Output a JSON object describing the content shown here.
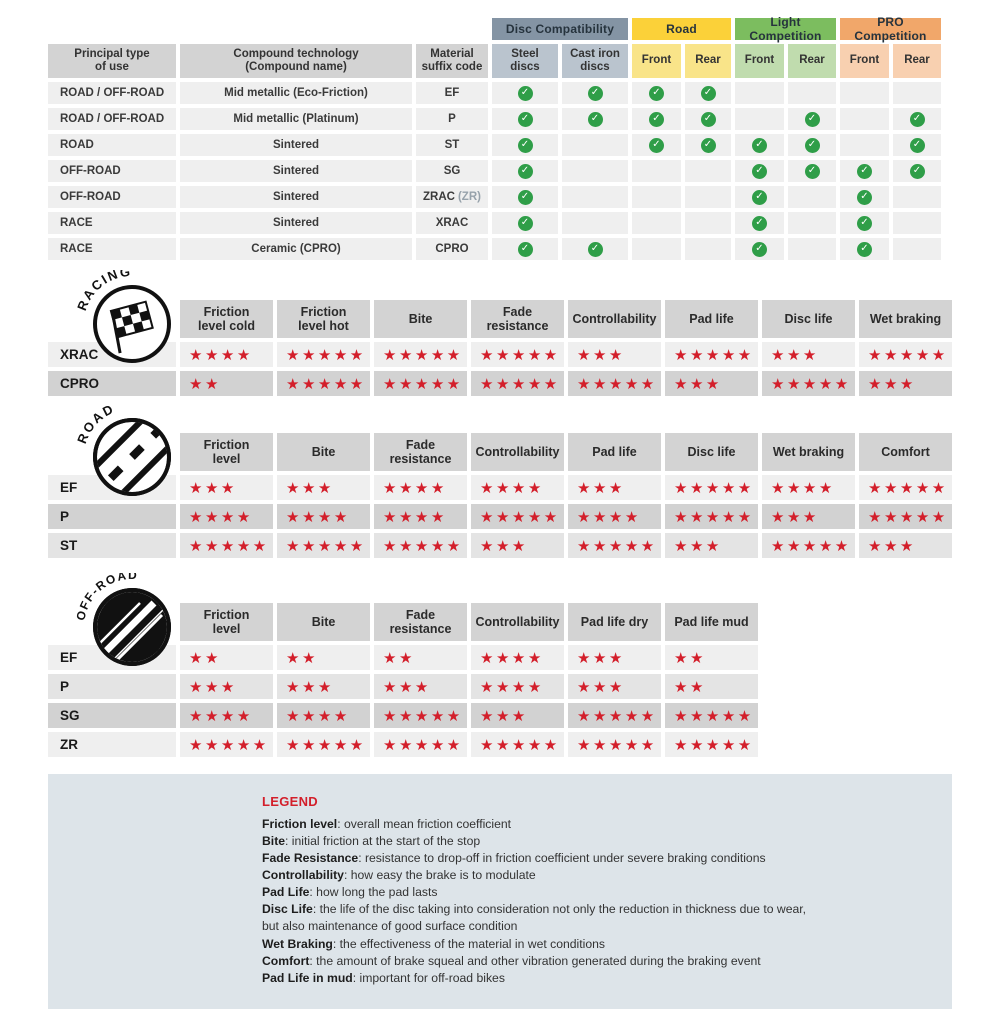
{
  "colors": {
    "star_red": "#d31f2b",
    "check_green": "#2f9e48",
    "header_gray": "#d3d3d3",
    "row_light": "#efefef",
    "row_mid": "#e4e4e4",
    "row_dark": "#d2d2d2",
    "disc_group": "#8494a4",
    "disc_sub": "#bac4ce",
    "road_group": "#fbd139",
    "road_sub": "#f9e489",
    "light_group": "#7cbd5f",
    "light_sub": "#c0dcae",
    "pro_group": "#f1a76a",
    "pro_sub": "#f8d0b0",
    "legend_bg": "#dde4e9",
    "legend_red": "#d31f2b"
  },
  "chart_data": [
    {
      "type": "table",
      "title": "",
      "column_groups": [
        {
          "label": "Disc Compatibility",
          "span": 2
        },
        {
          "label": "Road",
          "span": 2
        },
        {
          "label": "Light Competition",
          "span": 2
        },
        {
          "label": "PRO Competition",
          "span": 2
        }
      ],
      "columns": [
        "Principal type\nof use",
        "Compound technology\n(Compound name)",
        "Material\nsuffix code",
        "Steel\ndiscs",
        "Cast iron\ndiscs",
        "Front",
        "Rear",
        "Front",
        "Rear",
        "Front",
        "Rear"
      ],
      "rows": [
        {
          "use": "ROAD / OFF-ROAD",
          "technology": "Mid metallic (Eco-Friction)",
          "suffix": "EF",
          "suffix_note": "",
          "checks": [
            1,
            1,
            1,
            1,
            0,
            0,
            0,
            0
          ]
        },
        {
          "use": "ROAD / OFF-ROAD",
          "technology": "Mid metallic (Platinum)",
          "suffix": "P",
          "suffix_note": "",
          "checks": [
            1,
            1,
            1,
            1,
            0,
            1,
            0,
            1
          ]
        },
        {
          "use": "ROAD",
          "technology": "Sintered",
          "suffix": "ST",
          "suffix_note": "",
          "checks": [
            1,
            0,
            1,
            1,
            1,
            1,
            0,
            1
          ]
        },
        {
          "use": "OFF-ROAD",
          "technology": "Sintered",
          "suffix": "SG",
          "suffix_note": "",
          "checks": [
            1,
            0,
            0,
            0,
            1,
            1,
            1,
            1
          ]
        },
        {
          "use": "OFF-ROAD",
          "technology": "Sintered",
          "suffix": "ZRAC",
          "suffix_note": "(ZR)",
          "checks": [
            1,
            0,
            0,
            0,
            1,
            0,
            1,
            0
          ]
        },
        {
          "use": "RACE",
          "technology": "Sintered",
          "suffix": "XRAC",
          "suffix_note": "",
          "checks": [
            1,
            0,
            0,
            0,
            1,
            0,
            1,
            0
          ]
        },
        {
          "use": "RACE",
          "technology": "Ceramic (CPRO)",
          "suffix": "CPRO",
          "suffix_note": "",
          "checks": [
            1,
            1,
            0,
            0,
            1,
            0,
            1,
            0
          ]
        }
      ]
    },
    {
      "type": "table",
      "title": "RACING",
      "scale": "stars out of 5",
      "columns": [
        "Friction\nlevel cold",
        "Friction\nlevel hot",
        "Bite",
        "Fade\nresistance",
        "Controllability",
        "Pad life",
        "Disc life",
        "Wet braking"
      ],
      "rows": [
        {
          "label": "XRAC",
          "shade": "light",
          "stars": [
            4,
            5,
            5,
            5,
            3,
            5,
            3,
            5
          ]
        },
        {
          "label": "CPRO",
          "shade": "dark",
          "stars": [
            2,
            5,
            5,
            5,
            5,
            3,
            5,
            3
          ]
        }
      ]
    },
    {
      "type": "table",
      "title": "ROAD",
      "scale": "stars out of 5",
      "columns": [
        "Friction\nlevel",
        "Bite",
        "Fade\nresistance",
        "Controllability",
        "Pad life",
        "Disc life",
        "Wet braking",
        "Comfort"
      ],
      "rows": [
        {
          "label": "EF",
          "shade": "light",
          "stars": [
            3,
            3,
            4,
            4,
            3,
            5,
            4,
            5
          ]
        },
        {
          "label": "P",
          "shade": "dark",
          "stars": [
            4,
            4,
            4,
            5,
            4,
            5,
            3,
            5
          ]
        },
        {
          "label": "ST",
          "shade": "mid",
          "stars": [
            5,
            5,
            5,
            3,
            5,
            3,
            5,
            3
          ]
        }
      ]
    },
    {
      "type": "table",
      "title": "OFF-ROAD",
      "scale": "stars out of 5",
      "columns": [
        "Friction\nlevel",
        "Bite",
        "Fade\nresistance",
        "Controllability",
        "Pad life dry",
        "Pad life mud"
      ],
      "rows": [
        {
          "label": "EF",
          "shade": "light",
          "stars": [
            2,
            2,
            2,
            4,
            3,
            2
          ]
        },
        {
          "label": "P",
          "shade": "mid",
          "stars": [
            3,
            3,
            3,
            4,
            3,
            2
          ]
        },
        {
          "label": "SG",
          "shade": "dark",
          "stars": [
            4,
            4,
            5,
            3,
            5,
            5
          ]
        },
        {
          "label": "ZR",
          "shade": "light",
          "stars": [
            5,
            5,
            5,
            5,
            5,
            5
          ]
        }
      ]
    }
  ],
  "legend": {
    "title": "LEGEND",
    "items": [
      {
        "term": "Friction level",
        "desc": "overall mean friction coefficient"
      },
      {
        "term": "Bite",
        "desc": "initial friction at the start of the stop"
      },
      {
        "term": "Fade Resistance",
        "desc": "resistance to drop-off in friction coefficient under severe braking conditions"
      },
      {
        "term": "Controllability",
        "desc": "how easy the brake is to modulate"
      },
      {
        "term": "Pad Life",
        "desc": "how long the pad lasts"
      },
      {
        "term": "Disc Life",
        "desc": "the life of the disc taking into consideration not only the reduction in thickness due to wear,"
      },
      {
        "term": "",
        "desc": "but also maintenance of good surface condition"
      },
      {
        "term": "Wet Braking",
        "desc": "the effectiveness of the material in wet conditions"
      },
      {
        "term": "Comfort",
        "desc": "the amount of brake squeal and other vibration generated during the braking event"
      },
      {
        "term": "Pad Life in mud",
        "desc": "important for off-road bikes"
      }
    ]
  }
}
